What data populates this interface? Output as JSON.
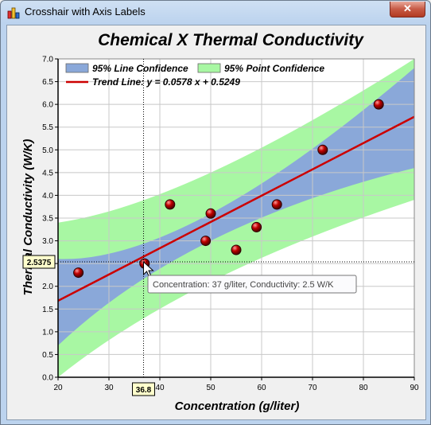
{
  "window": {
    "title": "Crosshair with Axis Labels",
    "close_label": "✕",
    "app_icon": "chart-bars-icon"
  },
  "colors": {
    "point_band": "#a8f7a3",
    "line_band": "#8aa8d9",
    "trend": "#cc0000",
    "marker": "#990000",
    "background": "#ffffff",
    "grid": "#c8c8c8"
  },
  "chart_data": {
    "type": "scatter",
    "title": "Chemical X Thermal Conductivity",
    "xlabel": "Concentration (g/liter)",
    "ylabel": "Thermal Conductivity (W/K)",
    "xlim": [
      20,
      90
    ],
    "ylim": [
      0,
      7
    ],
    "x_ticks": [
      "20",
      "30",
      "40",
      "50",
      "60",
      "70",
      "80",
      "90"
    ],
    "y_ticks": [
      "0.0",
      "0.5",
      "1.0",
      "1.5",
      "2.0",
      "2.5",
      "3.0",
      "3.5",
      "4.0",
      "4.5",
      "5.0",
      "5.5",
      "6.0",
      "6.5",
      "7.0"
    ],
    "grid": true,
    "legend_position": "top-left",
    "legend": {
      "line_confidence": "95% Line Confidence",
      "point_confidence": "95% Point Confidence",
      "trend": "Trend Line: y = 0.0578 x + 0.5249"
    },
    "series": [
      {
        "name": "",
        "x": [
          24,
          37,
          42,
          49,
          50,
          55,
          59,
          63,
          72,
          83
        ],
        "y": [
          2.3,
          2.5,
          3.8,
          3.0,
          3.6,
          2.8,
          3.3,
          3.8,
          5.0,
          6.0
        ]
      }
    ],
    "trend_line": {
      "slope": 0.0578,
      "intercept": 0.5249
    },
    "line_confidence_band": {
      "x": [
        20,
        50,
        90
      ],
      "lower": [
        0.7,
        3.0,
        4.6
      ],
      "upper": [
        2.6,
        3.6,
        6.8
      ]
    },
    "point_confidence_band": {
      "x": [
        20,
        50,
        90
      ],
      "lower": [
        0.0,
        2.1,
        3.9
      ],
      "upper": [
        3.4,
        4.5,
        7.0
      ]
    },
    "crosshair": {
      "x_label": "36.8",
      "y_label": "2.5375",
      "x": 36.8,
      "y": 2.5375,
      "tooltip": "Concentration: 37 g/liter, Conductivity: 2.5 W/K"
    }
  }
}
